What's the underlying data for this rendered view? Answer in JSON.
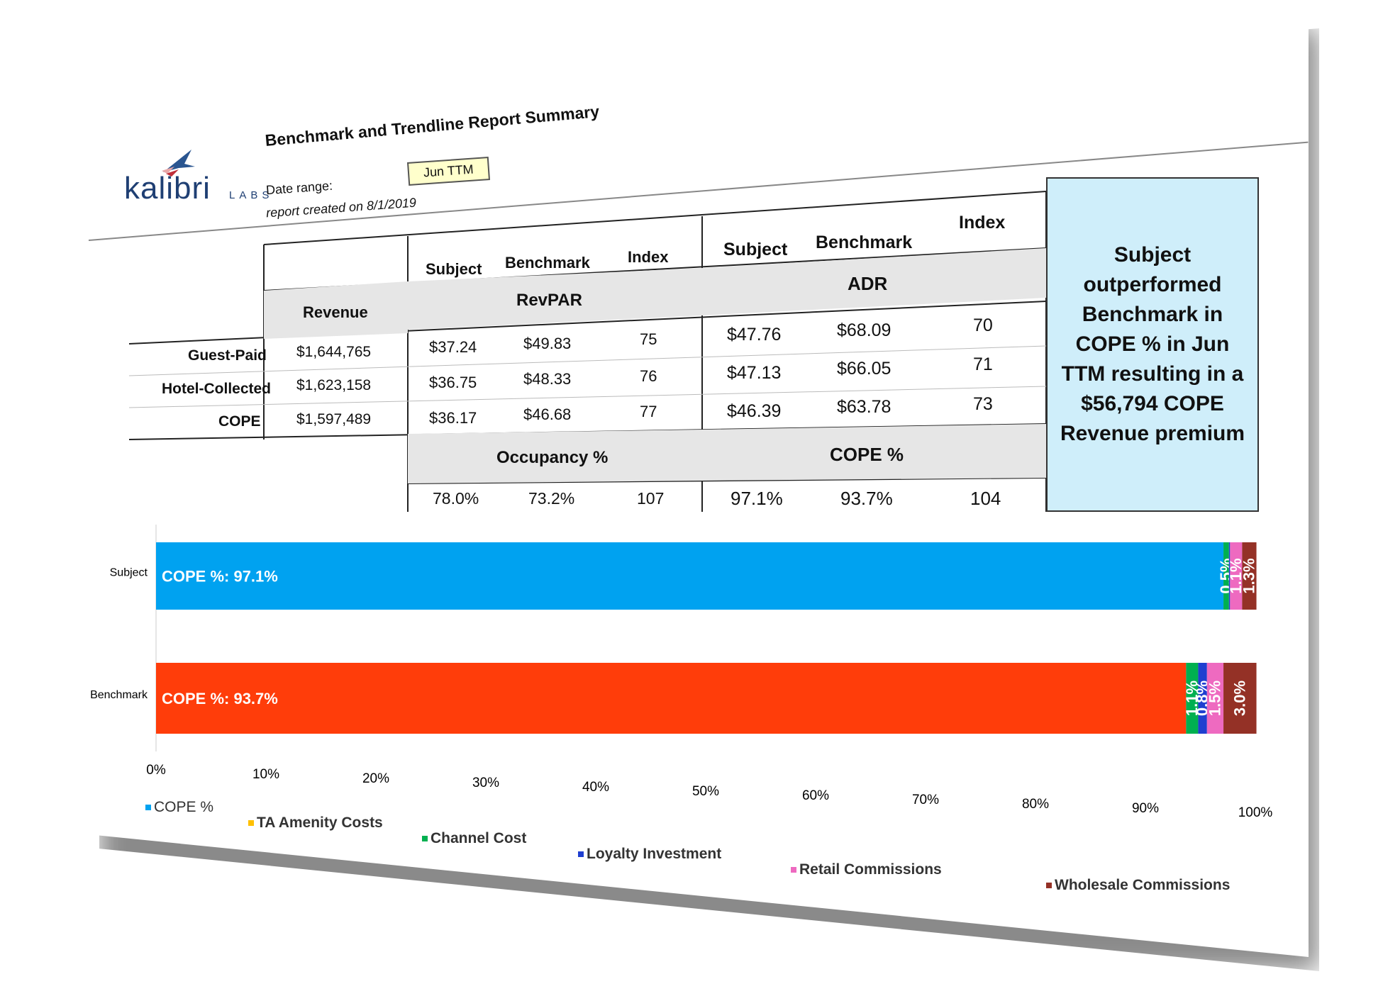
{
  "header": {
    "logo_word": "kalibri",
    "logo_labs": "LABS",
    "title": "Benchmark and Trendline Report Summary",
    "date_range_label": "Date range:",
    "date_range_value": "Jun TTM",
    "created_text": "report created on 8/1/2019"
  },
  "table": {
    "revenue_header": "Revenue",
    "group_headers": [
      "RevPAR",
      "ADR",
      "Occupancy %",
      "COPE %"
    ],
    "sub_headers": [
      "Subject",
      "Benchmark",
      "Index"
    ],
    "rows": [
      {
        "label": "Guest-Paid",
        "revenue": "$1,644,765",
        "revpar": [
          "$37.24",
          "$49.83",
          "75"
        ],
        "adr": [
          "$47.76",
          "$68.09",
          "70"
        ]
      },
      {
        "label": "Hotel-Collected",
        "revenue": "$1,623,158",
        "revpar": [
          "$36.75",
          "$48.33",
          "76"
        ],
        "adr": [
          "$47.13",
          "$66.05",
          "71"
        ]
      },
      {
        "label": "COPE",
        "revenue": "$1,597,489",
        "revpar": [
          "$36.17",
          "$46.68",
          "77"
        ],
        "adr": [
          "$46.39",
          "$63.78",
          "73"
        ]
      }
    ],
    "occupancy": [
      "78.0%",
      "73.2%",
      "107"
    ],
    "cope_pct": [
      "97.1%",
      "93.7%",
      "104"
    ]
  },
  "callout": "Subject outperformed Benchmark in COPE % in Jun TTM resulting in a $56,794 COPE Revenue premium",
  "chart_data": {
    "type": "bar",
    "orientation": "horizontal",
    "stacked": true,
    "categories": [
      "Subject",
      "Benchmark"
    ],
    "series": [
      {
        "name": "COPE %",
        "values": [
          97.1,
          93.7
        ],
        "color": "#00a2f0"
      },
      {
        "name": "TA Amenity Costs",
        "values": [
          0.0,
          0.0
        ],
        "color": "#ffc000"
      },
      {
        "name": "Channel Cost",
        "values": [
          0.5,
          1.1
        ],
        "color": "#00b050"
      },
      {
        "name": "Loyalty Investment",
        "values": [
          0.1,
          0.8
        ],
        "color": "#1f3fd0"
      },
      {
        "name": "Retail Commissions",
        "values": [
          1.1,
          1.5
        ],
        "color": "#ee6ac0"
      },
      {
        "name": "Wholesale Commissions",
        "values": [
          1.3,
          3.0
        ],
        "color": "#943126"
      }
    ],
    "bar_colors_primary": [
      "#00a2f0",
      "#ff3d0a"
    ],
    "data_labels": {
      "Subject": [
        "COPE %: 97.1%",
        "",
        "0.5%",
        "",
        "1.1%",
        "1.3%"
      ],
      "Benchmark": [
        "COPE %: 93.7%",
        "",
        "1.1%",
        "0.8%",
        "1.5%",
        "3.0%"
      ]
    },
    "x_ticks": [
      "0%",
      "10%",
      "20%",
      "30%",
      "40%",
      "50%",
      "60%",
      "70%",
      "80%",
      "90%",
      "100%"
    ],
    "xlim": [
      0,
      100
    ],
    "legend_position": "bottom",
    "grid": false
  }
}
